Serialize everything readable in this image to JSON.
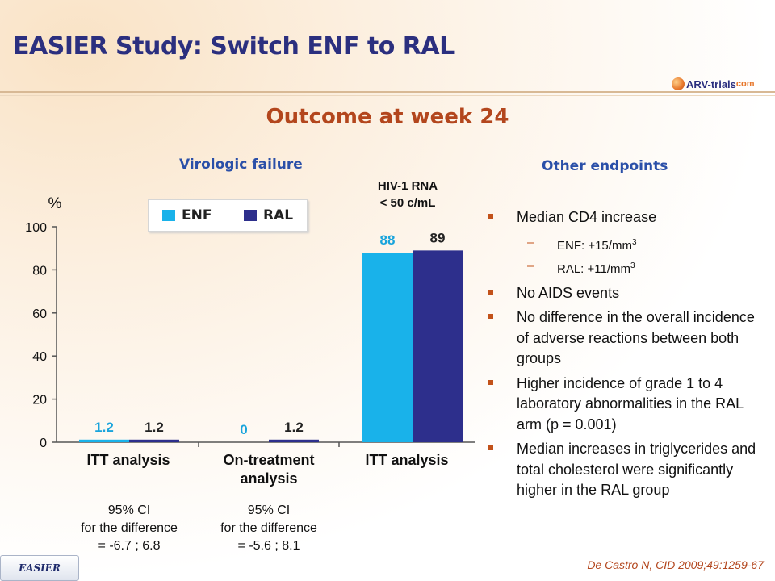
{
  "slide": {
    "title": "EASIER Study: Switch ENF to RAL",
    "subtitle": "Outcome at week 24",
    "logo": {
      "name": "ARV-trials",
      "suffix": "com"
    },
    "badge": "EASIER",
    "citation": "De Castro N, CID 2009;49:1259-67"
  },
  "colors": {
    "ENF": "#19b2ea",
    "RAL": "#2d2f8c",
    "title": "#2b2f7f",
    "accent": "#b3461d",
    "section": "#2a4fa8"
  },
  "left_heading": "Virologic failure",
  "hiv_label": {
    "line1": "HIV-1 RNA",
    "line2": "< 50 c/mL"
  },
  "y_unit": "%",
  "legend": {
    "enf": "ENF",
    "ral": "RAL"
  },
  "categories": [
    {
      "line1": "ITT analysis",
      "line2": ""
    },
    {
      "line1": "On-treatment",
      "line2": "analysis"
    },
    {
      "line1": "ITT analysis",
      "line2": ""
    }
  ],
  "ci": [
    {
      "l1": "95% CI",
      "l2": "for the difference",
      "l3": "= -6.7 ; 6.8"
    },
    {
      "l1": "95% CI",
      "l2": "for the difference",
      "l3": "= -5.6 ; 8.1"
    }
  ],
  "chart_data": {
    "type": "bar",
    "categories": [
      "ITT analysis",
      "On-treatment analysis",
      "ITT analysis"
    ],
    "series": [
      {
        "name": "ENF",
        "values": [
          1.2,
          0,
          88
        ],
        "labels": [
          "1.2",
          "0",
          "88"
        ]
      },
      {
        "name": "RAL",
        "values": [
          1.2,
          1.2,
          89
        ],
        "labels": [
          "1.2",
          "1.2",
          "89"
        ]
      }
    ],
    "ylabel": "%",
    "ylim": [
      0,
      100
    ],
    "yticks": [
      0,
      20,
      40,
      60,
      80,
      100
    ],
    "ytick_labels": [
      "0",
      "20",
      "40",
      "60",
      "80",
      "100"
    ],
    "legend": "top",
    "grid": false
  },
  "right_heading": "Other endpoints",
  "endpoints": {
    "e1": "Median CD4 increase",
    "sub1_pre": "ENF: +15/mm",
    "sub1_sup": "3",
    "sub2_pre": "RAL: +11/mm",
    "sub2_sup": "3",
    "e2": "No AIDS events",
    "e3": "No difference in the overall incidence of adverse reactions between both groups",
    "e4": "Higher incidence of grade 1 to 4 laboratory abnormalities in the RAL arm (p = 0.001)",
    "e5": "Median increases in triglycerides and total cholesterol were significantly higher in the RAL group"
  }
}
